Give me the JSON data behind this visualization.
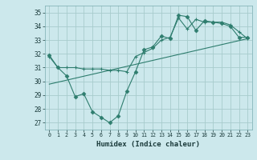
{
  "xlabel": "Humidex (Indice chaleur)",
  "ylabel": "",
  "xlim": [
    -0.5,
    23.5
  ],
  "ylim": [
    26.5,
    35.5
  ],
  "xticks": [
    0,
    1,
    2,
    3,
    4,
    5,
    6,
    7,
    8,
    9,
    10,
    11,
    12,
    13,
    14,
    15,
    16,
    17,
    18,
    19,
    20,
    21,
    22,
    23
  ],
  "yticks": [
    27,
    28,
    29,
    30,
    31,
    32,
    33,
    34,
    35
  ],
  "color": "#2e7d6e",
  "bg_color": "#cce8ec",
  "grid_color": "#a8cccc",
  "line1_x": [
    0,
    1,
    2,
    3,
    4,
    5,
    6,
    7,
    8,
    9,
    10,
    11,
    12,
    13,
    14,
    15,
    16,
    17,
    18,
    19,
    20,
    21,
    22,
    23
  ],
  "line1_y": [
    31.9,
    31.0,
    30.4,
    28.9,
    29.1,
    27.8,
    27.4,
    27.0,
    27.5,
    29.3,
    30.7,
    32.3,
    32.5,
    33.3,
    33.1,
    34.8,
    34.7,
    33.7,
    34.4,
    34.3,
    34.2,
    34.0,
    33.2,
    33.2
  ],
  "line2_x": [
    0,
    1,
    2,
    3,
    4,
    5,
    6,
    7,
    8,
    9,
    10,
    11,
    12,
    13,
    14,
    15,
    16,
    17,
    18,
    19,
    20,
    21,
    22,
    23
  ],
  "line2_y": [
    31.8,
    31.0,
    31.0,
    31.0,
    30.9,
    30.9,
    30.9,
    30.8,
    30.8,
    30.7,
    31.8,
    32.1,
    32.4,
    33.0,
    33.2,
    34.6,
    33.8,
    34.5,
    34.3,
    34.3,
    34.3,
    34.1,
    33.6,
    33.1
  ],
  "line3_x": [
    0,
    23
  ],
  "line3_y": [
    29.8,
    33.1
  ]
}
